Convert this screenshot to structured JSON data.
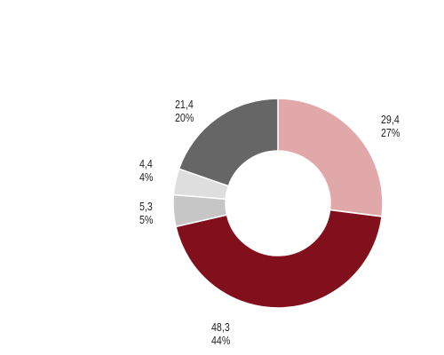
{
  "chart_data": {
    "type": "pie",
    "variant": "donut",
    "title": "",
    "legend": "none",
    "slices": [
      {
        "value": 29.4,
        "value_label": "29,4",
        "percent_label": "27%",
        "color": "#e0a8a8"
      },
      {
        "value": 48.3,
        "value_label": "48,3",
        "percent_label": "44%",
        "color": "#820f1c"
      },
      {
        "value": 5.3,
        "value_label": "5,3",
        "percent_label": "5%",
        "color": "#c6c6c6"
      },
      {
        "value": 4.4,
        "value_label": "4,4",
        "percent_label": "4%",
        "color": "#dedede"
      },
      {
        "value": 21.4,
        "value_label": "21,4",
        "percent_label": "20%",
        "color": "#666666"
      }
    ]
  }
}
